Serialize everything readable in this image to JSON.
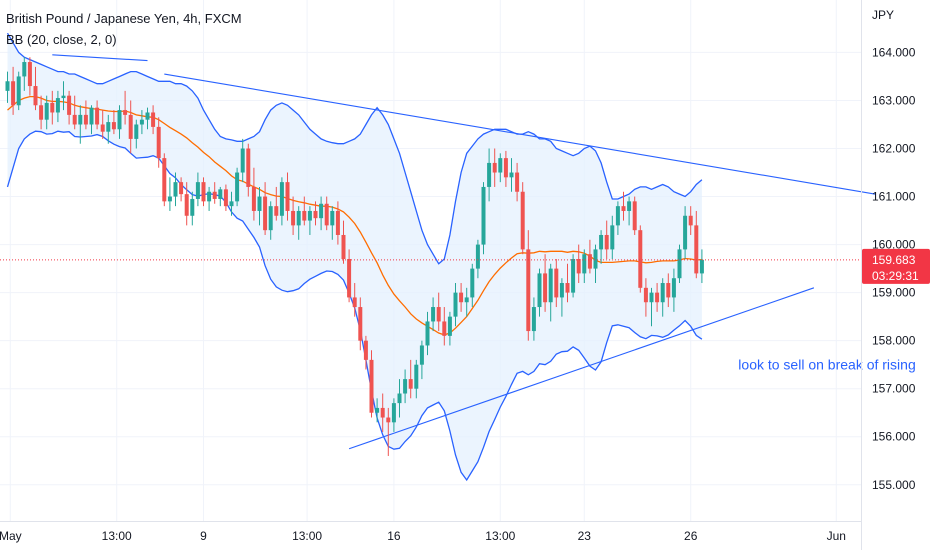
{
  "header": {
    "title": "British Pound / Japanese Yen, 4h, FXCM",
    "indicator": "BB (20, close, 2, 0)"
  },
  "chart_data": {
    "type": "candlestick",
    "symbol": "British Pound / Japanese Yen",
    "interval": "4h",
    "source": "FXCM",
    "currency_label": "JPY",
    "ylim": [
      154.6,
      164.8
    ],
    "y_ticks": [
      "164.000",
      "163.000",
      "162.000",
      "161.000",
      "160.000",
      "159.000",
      "158.000",
      "157.000",
      "156.000",
      "155.000"
    ],
    "x_ticks": [
      {
        "label": "May",
        "bar": 0.5
      },
      {
        "label": "13:00",
        "bar": 19.5
      },
      {
        "label": "9",
        "bar": 35
      },
      {
        "label": "13:00",
        "bar": 53.5
      },
      {
        "label": "16",
        "bar": 69
      },
      {
        "label": "13:00",
        "bar": 88
      },
      {
        "label": "23",
        "bar": 103
      },
      {
        "label": "26",
        "bar": 122
      },
      {
        "label": "Jun",
        "bar": 148
      }
    ],
    "last_price": "159.683",
    "countdown": "03:29:31",
    "colors": {
      "up": "#26a69a",
      "down": "#ef5350",
      "basis": "#ff6d00",
      "bands": "#2962ff",
      "band_fill": "#e3effd",
      "trendline": "#2962ff",
      "last_price": "#f23645"
    },
    "ohlc": [
      [
        163.2,
        163.6,
        162.95,
        163.4
      ],
      [
        163.4,
        163.7,
        162.7,
        162.9
      ],
      [
        162.9,
        163.6,
        162.8,
        163.5
      ],
      [
        163.5,
        163.9,
        163.2,
        163.8
      ],
      [
        163.8,
        163.9,
        163.1,
        163.3
      ],
      [
        163.3,
        163.7,
        162.8,
        162.9
      ],
      [
        162.9,
        163.1,
        162.4,
        162.6
      ],
      [
        162.6,
        163.1,
        162.4,
        162.95
      ],
      [
        162.95,
        163.2,
        162.5,
        162.75
      ],
      [
        162.75,
        163.2,
        162.55,
        163.05
      ],
      [
        163.05,
        163.4,
        162.8,
        163.1
      ],
      [
        163.1,
        163.2,
        162.5,
        162.7
      ],
      [
        162.7,
        163.1,
        162.4,
        162.5
      ],
      [
        162.5,
        162.9,
        162.1,
        162.7
      ],
      [
        162.7,
        163.0,
        162.4,
        162.5
      ],
      [
        162.5,
        162.9,
        162.3,
        162.85
      ],
      [
        162.85,
        163.0,
        162.4,
        162.5
      ],
      [
        162.5,
        162.8,
        162.2,
        162.35
      ],
      [
        162.35,
        162.7,
        162.1,
        162.55
      ],
      [
        162.55,
        162.8,
        162.3,
        162.4
      ],
      [
        162.4,
        162.9,
        162.2,
        162.8
      ],
      [
        162.8,
        163.2,
        162.5,
        162.7
      ],
      [
        162.7,
        163.0,
        161.9,
        162.2
      ],
      [
        162.2,
        162.6,
        162.0,
        162.5
      ],
      [
        162.5,
        162.8,
        162.3,
        162.6
      ],
      [
        162.6,
        162.85,
        162.4,
        162.75
      ],
      [
        162.75,
        162.9,
        162.3,
        162.45
      ],
      [
        162.45,
        162.65,
        161.6,
        161.8
      ],
      [
        161.8,
        161.9,
        160.8,
        160.9
      ],
      [
        160.9,
        161.4,
        160.7,
        161.0
      ],
      [
        161.0,
        161.5,
        160.8,
        161.3
      ],
      [
        161.3,
        161.4,
        160.9,
        161.05
      ],
      [
        161.05,
        161.3,
        160.4,
        160.6
      ],
      [
        160.6,
        161.1,
        160.4,
        160.95
      ],
      [
        160.95,
        161.5,
        160.8,
        161.3
      ],
      [
        161.3,
        161.4,
        160.8,
        160.9
      ],
      [
        160.9,
        161.2,
        160.7,
        161.1
      ],
      [
        161.1,
        161.3,
        160.85,
        160.95
      ],
      [
        160.95,
        161.2,
        160.8,
        161.15
      ],
      [
        161.15,
        161.25,
        160.7,
        160.8
      ],
      [
        160.8,
        161.1,
        160.6,
        160.9
      ],
      [
        160.9,
        161.6,
        160.8,
        161.5
      ],
      [
        161.5,
        162.2,
        161.3,
        162.0
      ],
      [
        162.0,
        162.1,
        161.0,
        161.2
      ],
      [
        161.2,
        161.6,
        160.5,
        160.7
      ],
      [
        160.7,
        161.2,
        160.4,
        161.0
      ],
      [
        161.0,
        161.3,
        160.2,
        160.3
      ],
      [
        160.3,
        160.9,
        160.1,
        160.8
      ],
      [
        160.8,
        161.2,
        160.5,
        160.6
      ],
      [
        160.6,
        161.4,
        160.4,
        161.3
      ],
      [
        161.3,
        161.5,
        160.5,
        160.7
      ],
      [
        160.7,
        161.0,
        160.2,
        160.4
      ],
      [
        160.4,
        160.8,
        160.1,
        160.7
      ],
      [
        160.7,
        161.0,
        160.4,
        160.5
      ],
      [
        160.5,
        160.8,
        160.2,
        160.7
      ],
      [
        160.7,
        160.9,
        160.4,
        160.55
      ],
      [
        160.55,
        161.0,
        160.3,
        160.85
      ],
      [
        160.85,
        161.0,
        160.3,
        160.4
      ],
      [
        160.4,
        160.8,
        160.1,
        160.7
      ],
      [
        160.7,
        160.9,
        160.0,
        160.2
      ],
      [
        160.2,
        160.5,
        159.6,
        159.7
      ],
      [
        159.7,
        159.9,
        158.8,
        158.9
      ],
      [
        158.9,
        159.2,
        158.5,
        158.7
      ],
      [
        158.7,
        158.9,
        157.8,
        158.0
      ],
      [
        158.0,
        158.1,
        157.4,
        157.6
      ],
      [
        157.6,
        157.8,
        156.4,
        156.5
      ],
      [
        156.5,
        156.8,
        156.3,
        156.6
      ],
      [
        156.6,
        156.9,
        156.1,
        156.4
      ],
      [
        156.4,
        156.6,
        155.6,
        156.3
      ],
      [
        156.3,
        156.8,
        156.1,
        156.7
      ],
      [
        156.7,
        157.2,
        156.4,
        156.9
      ],
      [
        156.9,
        157.4,
        156.7,
        157.2
      ],
      [
        157.2,
        157.6,
        156.8,
        157.0
      ],
      [
        157.0,
        157.6,
        156.8,
        157.5
      ],
      [
        157.5,
        158.0,
        157.2,
        157.9
      ],
      [
        157.9,
        158.6,
        157.7,
        158.4
      ],
      [
        158.4,
        158.9,
        158.2,
        158.7
      ],
      [
        158.7,
        159.0,
        158.2,
        158.4
      ],
      [
        158.4,
        158.7,
        157.9,
        158.1
      ],
      [
        158.1,
        158.6,
        157.9,
        158.5
      ],
      [
        158.5,
        159.2,
        158.3,
        159.0
      ],
      [
        159.0,
        159.2,
        158.6,
        158.8
      ],
      [
        158.8,
        159.1,
        158.5,
        158.9
      ],
      [
        158.9,
        159.6,
        158.7,
        159.5
      ],
      [
        159.5,
        160.1,
        159.3,
        160.0
      ],
      [
        160.0,
        161.3,
        159.8,
        161.2
      ],
      [
        161.2,
        162.0,
        160.9,
        161.7
      ],
      [
        161.7,
        162.0,
        161.2,
        161.5
      ],
      [
        161.5,
        161.9,
        161.3,
        161.8
      ],
      [
        161.8,
        161.95,
        161.2,
        161.4
      ],
      [
        161.4,
        161.8,
        161.1,
        161.5
      ],
      [
        161.5,
        161.7,
        160.9,
        161.1
      ],
      [
        161.1,
        161.3,
        159.8,
        159.9
      ],
      [
        159.9,
        160.3,
        158.0,
        158.2
      ],
      [
        158.2,
        158.9,
        158.0,
        158.7
      ],
      [
        158.7,
        159.5,
        158.5,
        159.4
      ],
      [
        159.4,
        159.8,
        158.6,
        158.8
      ],
      [
        158.8,
        159.6,
        158.4,
        159.5
      ],
      [
        159.5,
        159.7,
        158.7,
        158.9
      ],
      [
        158.9,
        159.3,
        158.5,
        159.2
      ],
      [
        159.2,
        159.6,
        158.8,
        159.0
      ],
      [
        159.0,
        159.8,
        158.9,
        159.7
      ],
      [
        159.7,
        160.0,
        159.2,
        159.4
      ],
      [
        159.4,
        159.9,
        159.2,
        159.8
      ],
      [
        159.8,
        160.1,
        159.4,
        159.5
      ],
      [
        159.5,
        160.0,
        159.2,
        159.9
      ],
      [
        159.9,
        160.3,
        159.6,
        160.2
      ],
      [
        160.2,
        160.5,
        159.7,
        159.9
      ],
      [
        159.9,
        160.6,
        159.7,
        160.4
      ],
      [
        160.4,
        160.9,
        160.2,
        160.8
      ],
      [
        160.8,
        161.1,
        160.5,
        160.7
      ],
      [
        160.7,
        161.0,
        160.4,
        160.9
      ],
      [
        160.9,
        161.0,
        160.2,
        160.3
      ],
      [
        160.3,
        160.4,
        159.0,
        159.1
      ],
      [
        159.1,
        159.3,
        158.5,
        158.8
      ],
      [
        158.8,
        159.1,
        158.3,
        159.0
      ],
      [
        159.0,
        159.2,
        158.6,
        158.8
      ],
      [
        158.8,
        159.3,
        158.5,
        159.2
      ],
      [
        159.2,
        159.4,
        158.7,
        158.9
      ],
      [
        158.9,
        159.5,
        158.6,
        159.3
      ],
      [
        159.3,
        160.0,
        159.2,
        159.9
      ],
      [
        159.9,
        160.8,
        159.7,
        160.6
      ],
      [
        160.6,
        160.8,
        160.2,
        160.4
      ],
      [
        160.4,
        160.7,
        159.3,
        159.4
      ],
      [
        159.4,
        159.9,
        159.2,
        159.683
      ]
    ],
    "bands": {
      "period": 20,
      "basis": [
        162.8,
        162.9,
        163.0,
        163.05,
        163.08,
        163.08,
        163.05,
        163.0,
        162.98,
        162.98,
        162.97,
        162.95,
        162.9,
        162.87,
        162.85,
        162.83,
        162.82,
        162.8,
        162.78,
        162.77,
        162.77,
        162.78,
        162.75,
        162.7,
        162.68,
        162.66,
        162.65,
        162.6,
        162.52,
        162.44,
        162.37,
        162.3,
        162.22,
        162.12,
        162.03,
        161.92,
        161.83,
        161.72,
        161.63,
        161.54,
        161.43,
        161.35,
        161.32,
        161.26,
        161.2,
        161.15,
        161.08,
        161.04,
        161.01,
        161.0,
        160.96,
        160.92,
        160.89,
        160.87,
        160.84,
        160.82,
        160.8,
        160.8,
        160.78,
        160.74,
        160.68,
        160.57,
        160.44,
        160.26,
        160.05,
        159.83,
        159.62,
        159.37,
        159.15,
        158.97,
        158.83,
        158.7,
        158.56,
        158.45,
        158.37,
        158.3,
        158.23,
        158.16,
        158.12,
        158.16,
        158.26,
        158.38,
        158.5,
        158.67,
        158.84,
        159.04,
        159.23,
        159.38,
        159.51,
        159.62,
        159.72,
        159.81,
        159.83,
        159.82,
        159.83,
        159.86,
        159.85,
        159.86,
        159.86,
        159.86,
        159.84,
        159.86,
        159.85,
        159.82,
        159.76,
        159.67,
        159.63,
        159.63,
        159.63,
        159.64,
        159.65,
        159.66,
        159.66,
        159.64,
        159.62,
        159.63,
        159.65,
        159.66,
        159.66,
        159.66,
        159.68,
        159.71,
        159.7,
        159.68,
        159.69
      ],
      "upper": [
        164.4,
        164.2,
        164.0,
        163.9,
        163.85,
        163.8,
        163.75,
        163.7,
        163.65,
        163.6,
        163.6,
        163.55,
        163.55,
        163.5,
        163.45,
        163.4,
        163.35,
        163.35,
        163.4,
        163.45,
        163.5,
        163.55,
        163.6,
        163.6,
        163.55,
        163.5,
        163.45,
        163.4,
        163.4,
        163.4,
        163.35,
        163.35,
        163.3,
        163.2,
        163.05,
        162.8,
        162.6,
        162.4,
        162.25,
        162.2,
        162.18,
        162.15,
        162.15,
        162.2,
        162.25,
        162.35,
        162.6,
        162.8,
        162.9,
        162.95,
        162.9,
        162.8,
        162.7,
        162.55,
        162.4,
        162.3,
        162.2,
        162.15,
        162.12,
        162.1,
        162.1,
        162.15,
        162.2,
        162.3,
        162.5,
        162.7,
        162.85,
        162.7,
        162.5,
        162.2,
        161.9,
        161.5,
        161.1,
        160.7,
        160.3,
        160.0,
        159.8,
        159.6,
        159.7,
        160.2,
        160.9,
        161.5,
        161.9,
        162.05,
        162.2,
        162.3,
        162.35,
        162.4,
        162.4,
        162.4,
        162.35,
        162.3,
        162.3,
        162.35,
        162.3,
        162.2,
        162.2,
        162.15,
        162.0,
        161.95,
        161.9,
        161.85,
        161.9,
        162.0,
        162.05,
        161.95,
        161.7,
        161.3,
        160.95,
        160.95,
        161.0,
        161.05,
        161.15,
        161.2,
        161.2,
        161.15,
        161.2,
        161.25,
        161.2,
        161.1,
        161.05,
        161.0,
        161.1,
        161.25,
        161.35
      ],
      "lower": [
        161.2,
        161.6,
        162.0,
        162.2,
        162.3,
        162.36,
        162.35,
        162.3,
        162.31,
        162.36,
        162.34,
        162.35,
        162.25,
        162.24,
        162.25,
        162.26,
        162.29,
        162.25,
        162.16,
        162.09,
        162.04,
        162.01,
        161.9,
        161.8,
        161.81,
        161.82,
        161.85,
        161.8,
        161.64,
        161.48,
        161.39,
        161.25,
        161.14,
        161.04,
        161.01,
        161.04,
        161.06,
        161.04,
        161.01,
        160.88,
        160.68,
        160.55,
        160.49,
        160.32,
        160.15,
        159.95,
        159.56,
        159.28,
        159.12,
        159.05,
        159.02,
        159.04,
        159.08,
        159.19,
        159.28,
        159.34,
        159.4,
        159.45,
        159.44,
        159.38,
        159.26,
        158.99,
        158.68,
        158.22,
        157.6,
        156.96,
        156.39,
        156.04,
        155.8,
        155.74,
        155.76,
        155.9,
        156.02,
        156.2,
        156.44,
        156.6,
        156.66,
        156.72,
        156.54,
        156.12,
        155.62,
        155.26,
        155.1,
        155.29,
        155.48,
        155.78,
        156.11,
        156.36,
        156.62,
        156.84,
        157.09,
        157.32,
        157.36,
        157.29,
        157.36,
        157.52,
        157.5,
        157.57,
        157.72,
        157.77,
        157.78,
        157.87,
        157.8,
        157.64,
        157.47,
        157.39,
        157.56,
        157.96,
        158.31,
        158.33,
        158.3,
        158.27,
        158.17,
        158.08,
        158.04,
        158.11,
        158.1,
        158.07,
        158.12,
        158.22,
        158.31,
        158.42,
        158.3,
        158.11,
        158.03
      ]
    },
    "trendlines": [
      {
        "name": "upper-short",
        "points": [
          [
            8,
            163.95
          ],
          [
            25,
            163.83
          ]
        ]
      },
      {
        "name": "descending",
        "points": [
          [
            28,
            163.55
          ],
          [
            155,
            161.05
          ]
        ]
      },
      {
        "name": "rising",
        "points": [
          [
            61,
            155.75
          ],
          [
            144,
            159.1
          ]
        ]
      }
    ],
    "annotations": [
      {
        "text": "look to sell on break of rising",
        "bar": 130.5,
        "price": 157.5
      }
    ]
  }
}
